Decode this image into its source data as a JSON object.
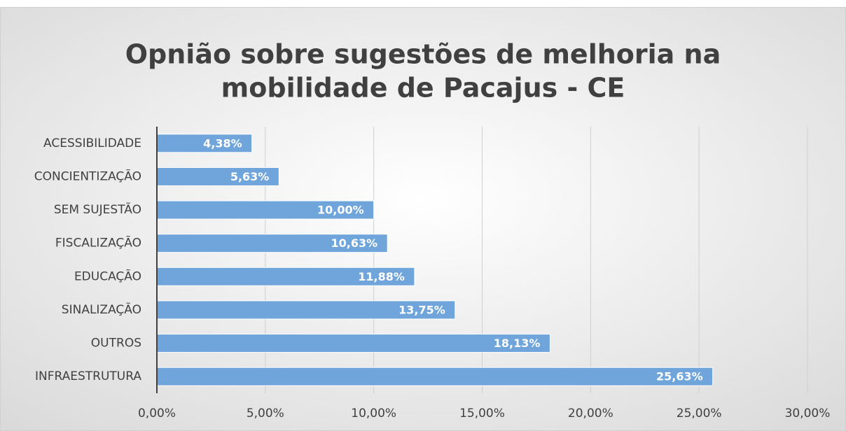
{
  "chart_data": {
    "type": "barh",
    "title": [
      "Opnião sobre sugestões de melhoria na",
      "mobilidade de Pacajus - CE"
    ],
    "categories": [
      "ACESSIBILIDADE",
      "CONCIENTIZAÇÃO",
      "SEM SUJESTÃO",
      "FISCALIZAÇÃO",
      "EDUCAÇÃO",
      "SINALIZAÇÃO",
      "OUTROS",
      "INFRAESTRUTURA"
    ],
    "values": [
      4.38,
      5.63,
      10.0,
      10.63,
      11.88,
      13.75,
      18.13,
      25.63
    ],
    "value_labels": [
      "4,38%",
      "5,63%",
      "10,00%",
      "10,63%",
      "11,88%",
      "13,75%",
      "18,13%",
      "25,63%"
    ],
    "color": "#6fa5da",
    "xlim": [
      0,
      30
    ],
    "xticks": [
      {
        "value": 0,
        "label": "0,00%"
      },
      {
        "value": 5,
        "label": "5,00%"
      },
      {
        "value": 10,
        "label": "10,00%"
      },
      {
        "value": 15,
        "label": "15,00%"
      },
      {
        "value": 20,
        "label": "20,00%"
      },
      {
        "value": 25,
        "label": "25,00%"
      },
      {
        "value": 30,
        "label": "30,00%"
      }
    ],
    "grid": true
  }
}
